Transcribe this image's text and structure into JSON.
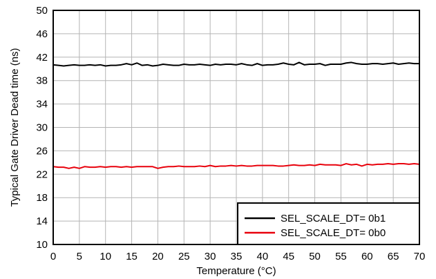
{
  "chart_data": {
    "type": "line",
    "xlabel": "Temperature (°C)",
    "ylabel": "Typical Gate Driver Dead time (ns)",
    "xlim": [
      0,
      70
    ],
    "ylim": [
      10,
      50
    ],
    "x_ticks": [
      "0",
      "5",
      "10",
      "15",
      "20",
      "25",
      "30",
      "35",
      "40",
      "45",
      "50",
      "55",
      "60",
      "65",
      "70"
    ],
    "y_ticks": [
      "10",
      "14",
      "18",
      "22",
      "26",
      "30",
      "34",
      "38",
      "42",
      "46",
      "50"
    ],
    "grid": true,
    "legend_position": "bottom-right",
    "x": [
      0,
      1,
      2,
      3,
      4,
      5,
      6,
      7,
      8,
      9,
      10,
      11,
      12,
      13,
      14,
      15,
      16,
      17,
      18,
      19,
      20,
      21,
      22,
      23,
      24,
      25,
      26,
      27,
      28,
      29,
      30,
      31,
      32,
      33,
      34,
      35,
      36,
      37,
      38,
      39,
      40,
      41,
      42,
      43,
      44,
      45,
      46,
      47,
      48,
      49,
      50,
      51,
      52,
      53,
      54,
      55,
      56,
      57,
      58,
      59,
      60,
      61,
      62,
      63,
      64,
      65,
      66,
      67,
      68,
      69,
      70
    ],
    "series": [
      {
        "name": "SEL_SCALE_DT= 0b1",
        "color": "#000000",
        "values": [
          40.7,
          40.6,
          40.5,
          40.6,
          40.7,
          40.6,
          40.6,
          40.7,
          40.6,
          40.7,
          40.5,
          40.6,
          40.6,
          40.7,
          40.9,
          40.7,
          41.0,
          40.6,
          40.7,
          40.5,
          40.6,
          40.8,
          40.7,
          40.6,
          40.6,
          40.8,
          40.7,
          40.7,
          40.8,
          40.7,
          40.6,
          40.8,
          40.7,
          40.8,
          40.8,
          40.7,
          40.9,
          40.7,
          40.6,
          40.9,
          40.6,
          40.7,
          40.7,
          40.8,
          41.0,
          40.8,
          40.7,
          41.1,
          40.7,
          40.8,
          40.8,
          40.9,
          40.6,
          40.8,
          40.8,
          40.8,
          41.0,
          41.1,
          40.9,
          40.8,
          40.8,
          40.9,
          40.9,
          40.8,
          40.9,
          41.0,
          40.8,
          40.9,
          41.0,
          40.9,
          40.9
        ]
      },
      {
        "name": "SEL_SCALE_DT= 0b0",
        "color": "#e8000b",
        "values": [
          23.3,
          23.2,
          23.2,
          23.0,
          23.2,
          23.0,
          23.3,
          23.2,
          23.2,
          23.3,
          23.2,
          23.3,
          23.3,
          23.2,
          23.3,
          23.2,
          23.3,
          23.3,
          23.3,
          23.3,
          23.0,
          23.2,
          23.3,
          23.3,
          23.4,
          23.3,
          23.3,
          23.3,
          23.4,
          23.3,
          23.5,
          23.3,
          23.4,
          23.4,
          23.5,
          23.4,
          23.5,
          23.4,
          23.4,
          23.5,
          23.5,
          23.5,
          23.5,
          23.4,
          23.4,
          23.5,
          23.6,
          23.5,
          23.5,
          23.6,
          23.5,
          23.7,
          23.6,
          23.6,
          23.6,
          23.5,
          23.8,
          23.6,
          23.7,
          23.4,
          23.7,
          23.6,
          23.7,
          23.7,
          23.8,
          23.7,
          23.8,
          23.8,
          23.7,
          23.8,
          23.7
        ]
      }
    ]
  }
}
